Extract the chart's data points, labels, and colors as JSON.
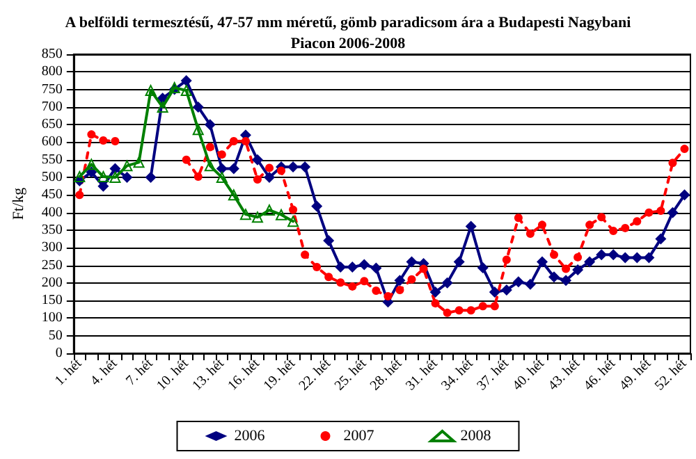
{
  "chart_data": {
    "type": "line",
    "title": "A belföldi termesztésű, 47-57 mm méretű, gömb paradicsom ára a Budapesti Nagybani\nPiacon 2006-2008",
    "ylabel": "Ft/kg",
    "categories": [
      "1. hét",
      null,
      null,
      "4. hét",
      null,
      null,
      "7. hét",
      null,
      null,
      "10. hét",
      null,
      null,
      "13. hét",
      null,
      null,
      "16. hét",
      null,
      null,
      "19. hét",
      null,
      null,
      "22. hét",
      null,
      null,
      "25. hét",
      null,
      null,
      "28. hét",
      null,
      null,
      "31. hét",
      null,
      null,
      "34. hét",
      null,
      null,
      "37. hét",
      null,
      null,
      "40. hét",
      null,
      null,
      "43. hét",
      null,
      null,
      "46. hét",
      null,
      null,
      "49. hét",
      null,
      null,
      "52. hét"
    ],
    "series": [
      {
        "name": "2006",
        "color": "#000080",
        "marker": "diamond",
        "line_style": "solid",
        "values": [
          490,
          515,
          475,
          525,
          500,
          null,
          500,
          725,
          750,
          775,
          700,
          650,
          525,
          525,
          620,
          550,
          500,
          530,
          530,
          530,
          418,
          320,
          245,
          245,
          252,
          242,
          146,
          207,
          260,
          255,
          174,
          200,
          260,
          361,
          243,
          174,
          180,
          203,
          196,
          260,
          217,
          207,
          237,
          260,
          280,
          280,
          272,
          272,
          272,
          325,
          400,
          450
        ]
      },
      {
        "name": "2007",
        "color": "#ff0000",
        "marker": "circle",
        "line_style": "dashed",
        "values": [
          450,
          622,
          605,
          603,
          null,
          null,
          null,
          null,
          null,
          550,
          502,
          586,
          565,
          603,
          603,
          494,
          527,
          519,
          408,
          280,
          245,
          217,
          201,
          190,
          205,
          178,
          162,
          180,
          210,
          240,
          142,
          115,
          122,
          122,
          134,
          134,
          266,
          385,
          340,
          365,
          280,
          240,
          273,
          365,
          387,
          348,
          356,
          375,
          400,
          405,
          541,
          581
        ]
      },
      {
        "name": "2008",
        "color": "#008000",
        "marker": "triangle",
        "line_style": "solid",
        "values": [
          502,
          537,
          502,
          500,
          533,
          543,
          747,
          700,
          755,
          747,
          636,
          533,
          500,
          450,
          395,
          387,
          407,
          394,
          375,
          null,
          null,
          null,
          null,
          null,
          null,
          null,
          null,
          null,
          null,
          null,
          null,
          null,
          null,
          null,
          null,
          null,
          null,
          null,
          null,
          null,
          null,
          null,
          null,
          null,
          null,
          null,
          null,
          null,
          null,
          null,
          null,
          null
        ]
      }
    ],
    "ylim": [
      0,
      850
    ],
    "yticks": [
      0,
      50,
      100,
      150,
      200,
      250,
      300,
      350,
      400,
      450,
      500,
      550,
      600,
      650,
      700,
      750,
      800,
      850
    ],
    "grid": "y",
    "legend": "bottom"
  }
}
